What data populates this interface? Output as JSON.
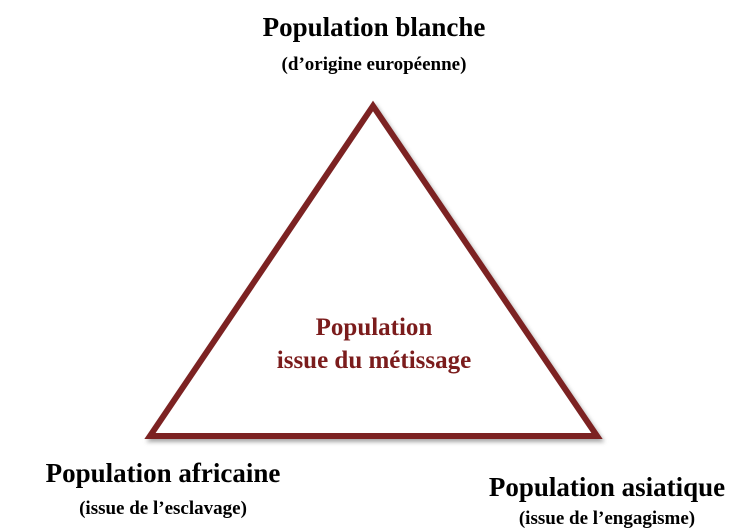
{
  "nodes": [
    {
      "label": "Population blanche",
      "sublabel": "(d’origine européenne)"
    },
    {
      "label": "Population africaine",
      "sublabel": "(issue de l’esclavage)"
    },
    {
      "label": "Population asiatique",
      "sublabel": "(issue de l’engagisme)"
    }
  ],
  "center": {
    "lines": [
      "Population",
      "issue du métissage"
    ]
  }
}
